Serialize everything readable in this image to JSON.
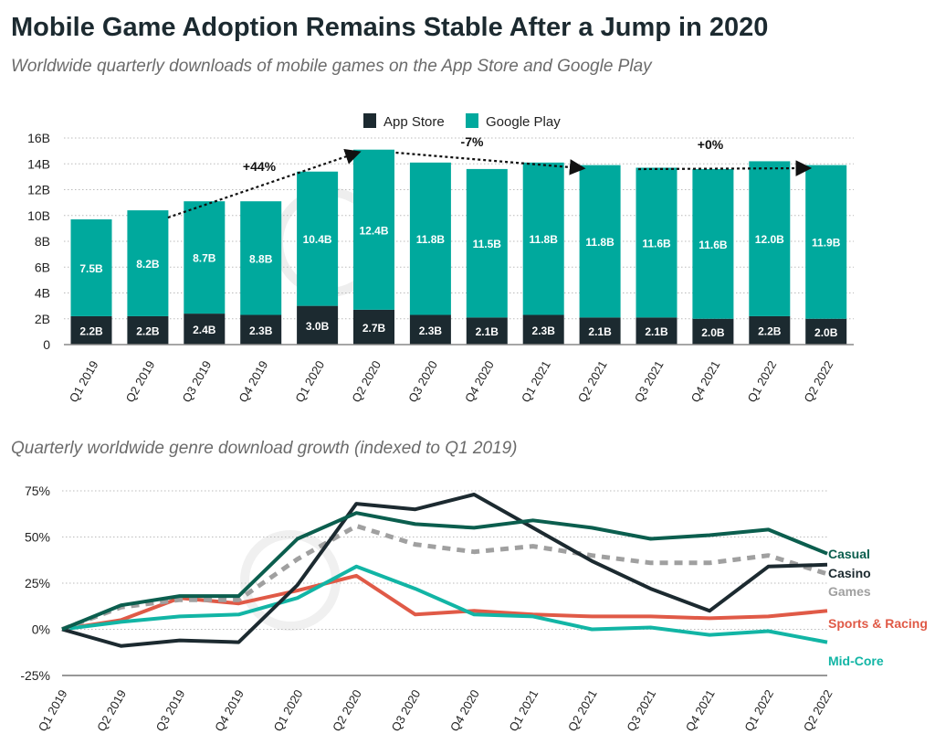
{
  "title": "Mobile Game Adoption Remains Stable After a Jump in 2020",
  "subtitle": "Worldwide quarterly downloads of mobile games on the App Store and Google Play",
  "chart_data": [
    {
      "type": "bar",
      "stacked": true,
      "categories": [
        "Q1 2019",
        "Q2 2019",
        "Q3 2019",
        "Q4 2019",
        "Q1 2020",
        "Q2 2020",
        "Q3 2020",
        "Q4 2020",
        "Q1 2021",
        "Q2 2021",
        "Q3 2021",
        "Q4 2021",
        "Q1 2022",
        "Q2 2022"
      ],
      "series": [
        {
          "name": "App Store",
          "color": "#1c2a30",
          "values": [
            2.2,
            2.2,
            2.4,
            2.3,
            3.0,
            2.7,
            2.3,
            2.1,
            2.3,
            2.1,
            2.1,
            2.0,
            2.2,
            2.0
          ],
          "labels": [
            "2.2B",
            "2.2B",
            "2.4B",
            "2.3B",
            "3.0B",
            "2.7B",
            "2.3B",
            "2.1B",
            "2.3B",
            "2.1B",
            "2.1B",
            "2.0B",
            "2.2B",
            "2.0B"
          ]
        },
        {
          "name": "Google Play",
          "color": "#00a99d",
          "values": [
            7.5,
            8.2,
            8.7,
            8.8,
            10.4,
            12.4,
            11.8,
            11.5,
            11.8,
            11.8,
            11.6,
            11.6,
            12.0,
            11.9
          ],
          "labels": [
            "7.5B",
            "8.2B",
            "8.7B",
            "8.8B",
            "10.4B",
            "12.4B",
            "11.8B",
            "11.5B",
            "11.8B",
            "11.8B",
            "11.6B",
            "11.6B",
            "12.0B",
            "11.9B"
          ]
        }
      ],
      "ylim": [
        0,
        16
      ],
      "yticks": [
        "0",
        "2B",
        "4B",
        "6B",
        "8B",
        "10B",
        "12B",
        "14B",
        "16B"
      ],
      "grid": true,
      "legend": "top-center",
      "annotations": [
        {
          "text": "+44%",
          "from": "Q2 2019",
          "to": "Q2 2020"
        },
        {
          "text": "-7%",
          "from": "Q2 2020",
          "to": "Q2 2021"
        },
        {
          "text": "+0%",
          "from": "Q3 2021",
          "to": "Q2 2022"
        }
      ]
    },
    {
      "type": "line",
      "title": "Quarterly worldwide genre download growth (indexed to Q1 2019)",
      "categories": [
        "Q1 2019",
        "Q2 2019",
        "Q3 2019",
        "Q4 2019",
        "Q1 2020",
        "Q2 2020",
        "Q3 2020",
        "Q4 2020",
        "Q1 2021",
        "Q2 2021",
        "Q3 2021",
        "Q4 2021",
        "Q1 2022",
        "Q2 2022"
      ],
      "ylim": [
        -25,
        75
      ],
      "yticks": [
        "-25%",
        "0%",
        "25%",
        "50%",
        "75%"
      ],
      "grid": true,
      "legend": "right (end labels)",
      "series": [
        {
          "name": "Casual",
          "color": "#0b5e4e",
          "dashed": false,
          "values": [
            0,
            13,
            18,
            18,
            49,
            63,
            57,
            55,
            59,
            55,
            49,
            51,
            54,
            41
          ]
        },
        {
          "name": "Casino",
          "color": "#1c2a30",
          "dashed": false,
          "values": [
            0,
            -9,
            -6,
            -7,
            24,
            68,
            65,
            73,
            55,
            37,
            22,
            10,
            34,
            35
          ]
        },
        {
          "name": "Games",
          "color": "#a0a0a0",
          "dashed": true,
          "values": [
            0,
            12,
            16,
            16,
            38,
            56,
            46,
            42,
            45,
            40,
            36,
            36,
            40,
            30
          ]
        },
        {
          "name": "Sports & Racing",
          "color": "#e05a47",
          "dashed": false,
          "values": [
            0,
            5,
            17,
            14,
            21,
            29,
            8,
            10,
            8,
            7,
            7,
            6,
            7,
            10
          ]
        },
        {
          "name": "Mid-Core",
          "color": "#12b5a5",
          "dashed": false,
          "values": [
            0,
            4,
            7,
            8,
            17,
            34,
            22,
            8,
            7,
            0,
            1,
            -3,
            -1,
            -7
          ]
        }
      ]
    }
  ]
}
